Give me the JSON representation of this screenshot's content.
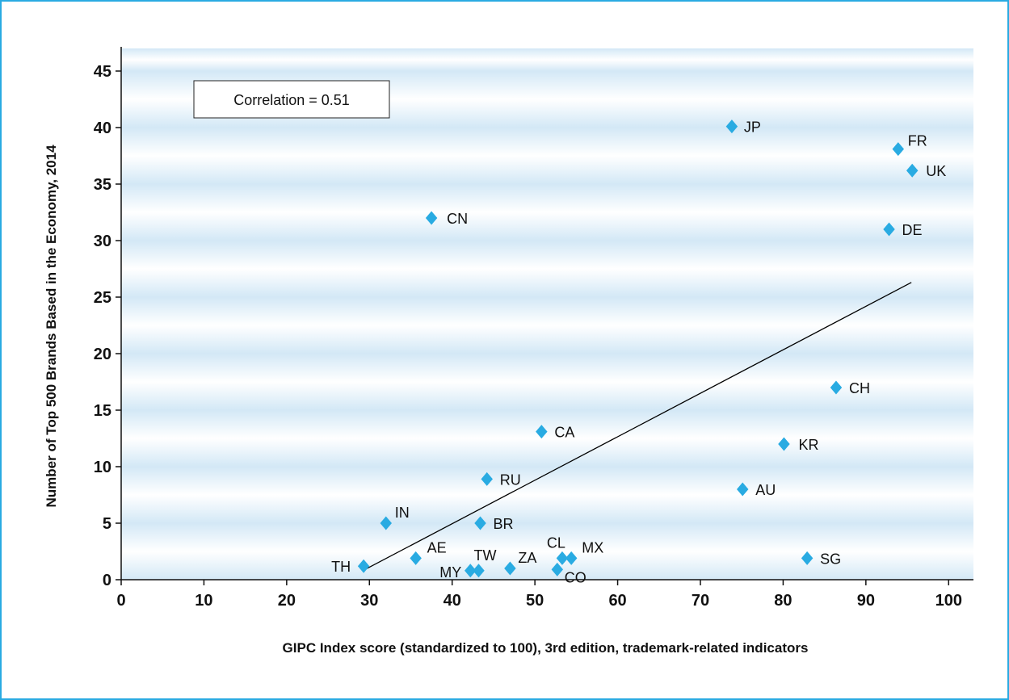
{
  "chart_data": {
    "type": "scatter",
    "xlabel": "GIPC Index score (standardized to 100), 3rd edition, trademark-related indicators",
    "ylabel": "Number of Top 500 Brands Based in the Economy, 2014",
    "xlim": [
      0,
      103
    ],
    "ylim": [
      0,
      47
    ],
    "xticks": [
      0,
      10,
      20,
      30,
      40,
      50,
      60,
      70,
      80,
      90,
      100
    ],
    "yticks": [
      0,
      5,
      10,
      15,
      20,
      25,
      30,
      35,
      40,
      45
    ],
    "annotation": "Correlation = 0.51",
    "background": "alternating light-blue gradient bands, one per 5 units",
    "marker": {
      "shape": "diamond",
      "color": "#29abe2"
    },
    "trendline": {
      "x": [
        29.2,
        95.5
      ],
      "y": [
        0.8,
        26.3
      ],
      "color": "#000000"
    },
    "points": [
      {
        "label": "JP",
        "x": 73.8,
        "y": 40.1
      },
      {
        "label": "FR",
        "x": 93.9,
        "y": 38.1
      },
      {
        "label": "UK",
        "x": 95.6,
        "y": 36.2
      },
      {
        "label": "CN",
        "x": 37.5,
        "y": 32.0
      },
      {
        "label": "DE",
        "x": 92.8,
        "y": 31.0
      },
      {
        "label": "CH",
        "x": 86.4,
        "y": 17.0
      },
      {
        "label": "CA",
        "x": 50.8,
        "y": 13.1
      },
      {
        "label": "KR",
        "x": 80.1,
        "y": 12.0
      },
      {
        "label": "RU",
        "x": 44.2,
        "y": 8.9
      },
      {
        "label": "AU",
        "x": 75.1,
        "y": 8.0
      },
      {
        "label": "IN",
        "x": 32.0,
        "y": 5.0
      },
      {
        "label": "BR",
        "x": 43.4,
        "y": 5.0
      },
      {
        "label": "SG",
        "x": 82.9,
        "y": 1.9
      },
      {
        "label": "AE",
        "x": 35.6,
        "y": 1.9
      },
      {
        "label": "MX",
        "x": 54.4,
        "y": 1.9
      },
      {
        "label": "CL",
        "x": 53.3,
        "y": 1.9
      },
      {
        "label": "TH",
        "x": 29.3,
        "y": 1.2
      },
      {
        "label": "TW",
        "x": 43.2,
        "y": 0.8
      },
      {
        "label": "MY",
        "x": 42.2,
        "y": 0.8
      },
      {
        "label": "ZA",
        "x": 47.0,
        "y": 1.0
      },
      {
        "label": "CO",
        "x": 52.7,
        "y": 0.9
      }
    ]
  },
  "colors": {
    "frame": "#29abe2",
    "marker": "#29abe2",
    "band_edge": "#d3e8f6",
    "band_center": "#ffffff"
  }
}
